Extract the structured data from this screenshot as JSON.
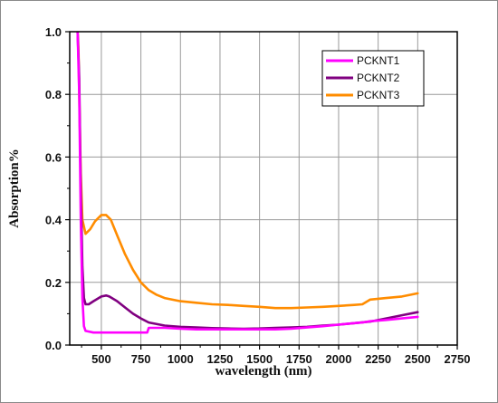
{
  "chart_data": {
    "type": "line",
    "xlabel": "wavelength (nm)",
    "ylabel": "Absorption%",
    "xlim": [
      300,
      2750
    ],
    "ylim": [
      0,
      1.0
    ],
    "x_ticks": [
      500,
      750,
      1000,
      1250,
      1500,
      1750,
      2000,
      2250,
      2500,
      2750
    ],
    "x_tick_labels": [
      "500",
      "750",
      "1000",
      "1250",
      "1500",
      "1750",
      "2000",
      "2250",
      "2500",
      "2750"
    ],
    "y_ticks": [
      0.0,
      0.2,
      0.4,
      0.6,
      0.8,
      1.0
    ],
    "y_tick_labels": [
      "0.0",
      "0.2",
      "0.4",
      "0.6",
      "0.8",
      "1.0"
    ],
    "grid": true,
    "legend_position": "top-right",
    "series": [
      {
        "name": "PCKNT1",
        "color": "#ff00ff",
        "x": [
          350,
          360,
          370,
          380,
          390,
          400,
          450,
          500,
          550,
          600,
          650,
          700,
          750,
          790,
          800,
          810,
          850,
          900,
          1000,
          1100,
          1200,
          1300,
          1400,
          1500,
          1600,
          1700,
          1800,
          1900,
          2000,
          2100,
          2150,
          2200,
          2300,
          2400,
          2500
        ],
        "y": [
          1.0,
          0.8,
          0.4,
          0.15,
          0.06,
          0.045,
          0.04,
          0.04,
          0.04,
          0.04,
          0.04,
          0.04,
          0.04,
          0.04,
          0.055,
          0.055,
          0.055,
          0.055,
          0.052,
          0.05,
          0.05,
          0.05,
          0.05,
          0.05,
          0.05,
          0.052,
          0.056,
          0.06,
          0.065,
          0.07,
          0.072,
          0.076,
          0.08,
          0.085,
          0.09
        ]
      },
      {
        "name": "PCKNT2",
        "color": "#800080",
        "x": [
          350,
          360,
          370,
          380,
          390,
          400,
          420,
          450,
          500,
          530,
          550,
          600,
          650,
          700,
          750,
          800,
          900,
          1000,
          1100,
          1200,
          1300,
          1400,
          1500,
          1600,
          1700,
          1800,
          1900,
          2000,
          2100,
          2200,
          2300,
          2400,
          2500
        ],
        "y": [
          1.0,
          0.85,
          0.5,
          0.25,
          0.15,
          0.13,
          0.13,
          0.14,
          0.155,
          0.158,
          0.155,
          0.14,
          0.12,
          0.1,
          0.085,
          0.072,
          0.062,
          0.058,
          0.056,
          0.054,
          0.053,
          0.052,
          0.053,
          0.055,
          0.056,
          0.058,
          0.062,
          0.065,
          0.07,
          0.075,
          0.085,
          0.095,
          0.105
        ]
      },
      {
        "name": "PCKNT3",
        "color": "#ff8c00",
        "x": [
          350,
          355,
          360,
          370,
          380,
          400,
          430,
          460,
          500,
          530,
          560,
          600,
          650,
          700,
          750,
          800,
          850,
          900,
          1000,
          1100,
          1200,
          1300,
          1400,
          1500,
          1600,
          1700,
          1800,
          1900,
          2000,
          2100,
          2150,
          2200,
          2300,
          2400,
          2500
        ],
        "y": [
          1.0,
          0.95,
          0.8,
          0.55,
          0.4,
          0.355,
          0.37,
          0.395,
          0.415,
          0.415,
          0.4,
          0.35,
          0.29,
          0.24,
          0.2,
          0.175,
          0.16,
          0.15,
          0.14,
          0.135,
          0.13,
          0.128,
          0.125,
          0.122,
          0.118,
          0.118,
          0.12,
          0.122,
          0.125,
          0.128,
          0.13,
          0.145,
          0.15,
          0.155,
          0.165
        ]
      }
    ]
  }
}
